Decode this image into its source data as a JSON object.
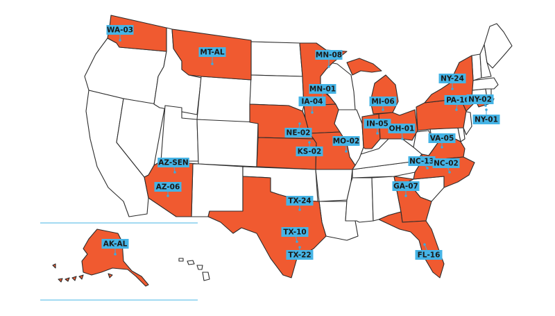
{
  "colors": {
    "highlight": "#f05a30",
    "label_background": "#45b4e6",
    "state_default": "#ffffff",
    "border": "#2b2b2b"
  },
  "highlighted_states": [
    "WA",
    "MT",
    "MN",
    "IA",
    "NE",
    "KS",
    "MO",
    "MI",
    "IN",
    "OH",
    "PA",
    "NY",
    "VA",
    "NC",
    "GA",
    "FL",
    "TX",
    "AZ",
    "AK"
  ],
  "labels": [
    {
      "id": "wa-03",
      "text": "WA-03"
    },
    {
      "id": "mt-al",
      "text": "MT-AL"
    },
    {
      "id": "mn-08",
      "text": "MN-08"
    },
    {
      "id": "mn-01",
      "text": "MN-01"
    },
    {
      "id": "ia-04",
      "text": "IA-04"
    },
    {
      "id": "ne-02",
      "text": "NE-02"
    },
    {
      "id": "ks-02",
      "text": "KS-02"
    },
    {
      "id": "mo-02",
      "text": "MO-02"
    },
    {
      "id": "mi-06",
      "text": "MI-06"
    },
    {
      "id": "in-05",
      "text": "IN-05"
    },
    {
      "id": "oh-01",
      "text": "OH-01"
    },
    {
      "id": "pa-10",
      "text": "PA-10"
    },
    {
      "id": "ny-24",
      "text": "NY-24"
    },
    {
      "id": "ny-02",
      "text": "NY-02"
    },
    {
      "id": "ny-01",
      "text": "NY-01"
    },
    {
      "id": "va-05",
      "text": "VA-05"
    },
    {
      "id": "nc-13",
      "text": "NC-13"
    },
    {
      "id": "nc-02",
      "text": "NC-02"
    },
    {
      "id": "ga-07",
      "text": "GA-07"
    },
    {
      "id": "fl-16",
      "text": "FL-16"
    },
    {
      "id": "tx-24",
      "text": "TX-24"
    },
    {
      "id": "tx-10",
      "text": "TX-10"
    },
    {
      "id": "tx-22",
      "text": "TX-22"
    },
    {
      "id": "az-sen",
      "text": "AZ-SEN"
    },
    {
      "id": "az-06",
      "text": "AZ-06"
    },
    {
      "id": "ak-al",
      "text": "AK-AL"
    }
  ]
}
